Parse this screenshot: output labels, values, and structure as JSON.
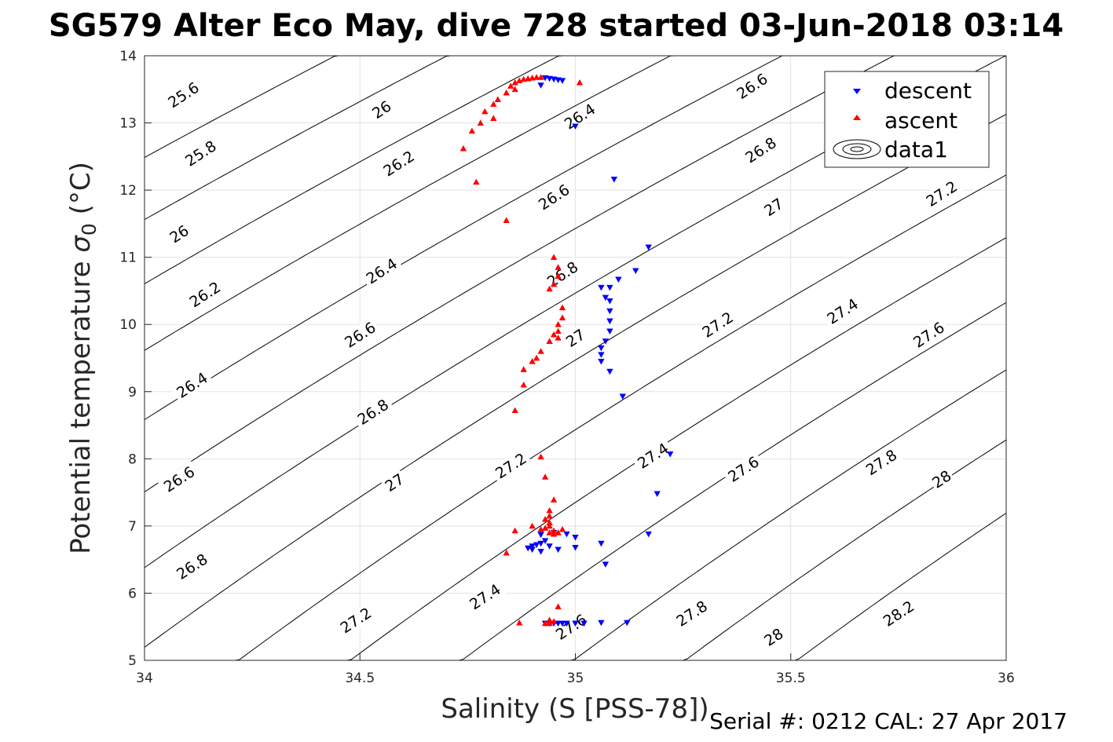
{
  "title": "SG579 Alter Eco May, dive 728 started 03-Jun-2018 03:14",
  "footer": "Serial #: 0212  CAL: 27 Apr 2017",
  "chart_data": {
    "type": "scatter",
    "title": "SG579 Alter Eco May, dive 728 started 03-Jun-2018 03:14",
    "xlabel": "Salinity (S [PSS-78])",
    "ylabel": "Potential temperature σ 0 (°C)",
    "ylabel_main": "Potential temperature ",
    "ylabel_sym": "σ",
    "ylabel_sub": "0",
    "ylabel_unit": " (°C)",
    "xlim": [
      34,
      36
    ],
    "ylim": [
      5,
      14
    ],
    "xticks": [
      "34",
      "34.5",
      "35",
      "35.5",
      "36"
    ],
    "yticks": [
      "5",
      "6",
      "7",
      "8",
      "9",
      "10",
      "11",
      "12",
      "13",
      "14"
    ],
    "grid": true,
    "legend_position": "top-right",
    "legend": [
      "descent",
      "ascent",
      "data1"
    ],
    "contours": {
      "name": "data1",
      "type": "sigma0 isopycnals",
      "levels": [
        25.6,
        25.8,
        26,
        26.2,
        26.4,
        26.6,
        26.8,
        27,
        27.2,
        27.4,
        27.6,
        27.8,
        28,
        28.2
      ],
      "labels": [
        {
          "text": "25.6",
          "x": 34.09,
          "y": 13.42
        },
        {
          "text": "25.8",
          "x": 34.13,
          "y": 12.55
        },
        {
          "text": "26",
          "x": 34.08,
          "y": 11.35
        },
        {
          "text": "26.2",
          "x": 34.14,
          "y": 10.45
        },
        {
          "text": "26.4",
          "x": 34.11,
          "y": 9.1
        },
        {
          "text": "26.6",
          "x": 34.08,
          "y": 7.7
        },
        {
          "text": "26.8",
          "x": 34.11,
          "y": 6.4
        },
        {
          "text": "26",
          "x": 34.55,
          "y": 13.2
        },
        {
          "text": "26.2",
          "x": 34.59,
          "y": 12.4
        },
        {
          "text": "26.4",
          "x": 34.55,
          "y": 10.8
        },
        {
          "text": "26.6",
          "x": 34.5,
          "y": 9.85
        },
        {
          "text": "26.8",
          "x": 34.53,
          "y": 8.7
        },
        {
          "text": "27",
          "x": 34.58,
          "y": 7.65
        },
        {
          "text": "27.2",
          "x": 34.49,
          "y": 5.6
        },
        {
          "text": "26.4",
          "x": 35.01,
          "y": 13.1
        },
        {
          "text": "26.6",
          "x": 34.95,
          "y": 11.9
        },
        {
          "text": "26.8",
          "x": 34.97,
          "y": 10.75
        },
        {
          "text": "27",
          "x": 35.0,
          "y": 9.8
        },
        {
          "text": "27.2",
          "x": 34.85,
          "y": 7.9
        },
        {
          "text": "27.4",
          "x": 34.79,
          "y": 5.95
        },
        {
          "text": "27.6",
          "x": 34.99,
          "y": 5.5
        },
        {
          "text": "26.6",
          "x": 35.41,
          "y": 13.55
        },
        {
          "text": "26.8",
          "x": 35.43,
          "y": 12.6
        },
        {
          "text": "27",
          "x": 35.46,
          "y": 11.75
        },
        {
          "text": "27.2",
          "x": 35.33,
          "y": 10.0
        },
        {
          "text": "27.4",
          "x": 35.18,
          "y": 8.05
        },
        {
          "text": "27.6",
          "x": 35.39,
          "y": 7.85
        },
        {
          "text": "27.8",
          "x": 35.27,
          "y": 5.7
        },
        {
          "text": "28",
          "x": 35.46,
          "y": 5.35
        },
        {
          "text": "27.2",
          "x": 35.85,
          "y": 11.95
        },
        {
          "text": "27.4",
          "x": 35.62,
          "y": 10.2
        },
        {
          "text": "27.6",
          "x": 35.82,
          "y": 9.85
        },
        {
          "text": "27.8",
          "x": 35.71,
          "y": 7.95
        },
        {
          "text": "28",
          "x": 35.85,
          "y": 7.7
        },
        {
          "text": "28.2",
          "x": 35.75,
          "y": 5.7
        }
      ]
    },
    "series": [
      {
        "name": "descent",
        "marker": "triangle-down",
        "color": "#0000ff",
        "points": [
          [
            34.93,
            13.67
          ],
          [
            34.94,
            13.66
          ],
          [
            34.95,
            13.65
          ],
          [
            34.96,
            13.64
          ],
          [
            34.97,
            13.63
          ],
          [
            34.92,
            13.56
          ],
          [
            35.0,
            12.95
          ],
          [
            35.09,
            12.16
          ],
          [
            35.17,
            11.15
          ],
          [
            35.14,
            10.8
          ],
          [
            35.1,
            10.67
          ],
          [
            35.06,
            10.55
          ],
          [
            35.08,
            10.55
          ],
          [
            35.07,
            10.4
          ],
          [
            35.08,
            10.35
          ],
          [
            35.08,
            10.2
          ],
          [
            35.08,
            10.05
          ],
          [
            35.08,
            9.9
          ],
          [
            35.07,
            9.75
          ],
          [
            35.06,
            9.65
          ],
          [
            35.06,
            9.55
          ],
          [
            35.06,
            9.45
          ],
          [
            35.08,
            9.3
          ],
          [
            35.11,
            8.93
          ],
          [
            35.22,
            8.07
          ],
          [
            35.19,
            7.48
          ],
          [
            35.17,
            6.88
          ],
          [
            35.06,
            6.74
          ],
          [
            35.07,
            6.43
          ],
          [
            34.92,
            6.87
          ],
          [
            34.95,
            6.9
          ],
          [
            34.98,
            6.88
          ],
          [
            35.0,
            6.83
          ],
          [
            34.93,
            6.78
          ],
          [
            34.92,
            6.74
          ],
          [
            34.91,
            6.72
          ],
          [
            34.9,
            6.7
          ],
          [
            34.89,
            6.67
          ],
          [
            34.9,
            6.65
          ],
          [
            34.92,
            6.62
          ],
          [
            34.94,
            6.7
          ],
          [
            34.96,
            6.65
          ],
          [
            35.0,
            6.68
          ],
          [
            34.93,
            5.55
          ],
          [
            34.94,
            5.55
          ],
          [
            34.95,
            5.55
          ],
          [
            34.96,
            5.55
          ],
          [
            34.97,
            5.55
          ],
          [
            34.98,
            5.55
          ],
          [
            35.0,
            5.55
          ],
          [
            35.02,
            5.55
          ],
          [
            35.06,
            5.56
          ],
          [
            35.12,
            5.56
          ]
        ]
      },
      {
        "name": "ascent",
        "marker": "triangle-up",
        "color": "#ff0000",
        "points": [
          [
            34.92,
            13.68
          ],
          [
            34.91,
            13.68
          ],
          [
            34.9,
            13.67
          ],
          [
            34.89,
            13.66
          ],
          [
            34.88,
            13.65
          ],
          [
            34.87,
            13.63
          ],
          [
            34.86,
            13.6
          ],
          [
            34.85,
            13.55
          ],
          [
            34.86,
            13.5
          ],
          [
            34.84,
            13.45
          ],
          [
            34.82,
            13.35
          ],
          [
            34.81,
            13.28
          ],
          [
            34.79,
            13.17
          ],
          [
            34.81,
            13.07
          ],
          [
            34.78,
            13.0
          ],
          [
            34.76,
            12.88
          ],
          [
            34.74,
            12.62
          ],
          [
            34.77,
            12.12
          ],
          [
            35.01,
            13.6
          ],
          [
            34.84,
            11.55
          ],
          [
            34.95,
            11.0
          ],
          [
            34.96,
            10.85
          ],
          [
            34.96,
            10.72
          ],
          [
            34.95,
            10.6
          ],
          [
            34.94,
            10.53
          ],
          [
            34.97,
            10.25
          ],
          [
            34.97,
            10.1
          ],
          [
            34.96,
            10.0
          ],
          [
            34.96,
            9.9
          ],
          [
            34.95,
            9.85
          ],
          [
            34.96,
            9.8
          ],
          [
            34.94,
            9.75
          ],
          [
            34.92,
            9.6
          ],
          [
            34.91,
            9.5
          ],
          [
            34.9,
            9.45
          ],
          [
            34.88,
            9.33
          ],
          [
            34.88,
            9.1
          ],
          [
            34.86,
            8.72
          ],
          [
            34.92,
            8.03
          ],
          [
            34.93,
            7.73
          ],
          [
            34.95,
            7.39
          ],
          [
            34.94,
            7.23
          ],
          [
            34.94,
            7.15
          ],
          [
            34.93,
            7.1
          ],
          [
            34.94,
            7.05
          ],
          [
            34.94,
            7.0
          ],
          [
            34.93,
            6.97
          ],
          [
            34.92,
            6.95
          ],
          [
            34.95,
            6.93
          ],
          [
            34.94,
            6.9
          ],
          [
            34.95,
            6.88
          ],
          [
            34.96,
            6.9
          ],
          [
            34.97,
            6.95
          ],
          [
            34.9,
            7.0
          ],
          [
            34.86,
            6.93
          ],
          [
            34.84,
            6.6
          ],
          [
            34.96,
            5.8
          ],
          [
            34.94,
            5.6
          ],
          [
            34.95,
            5.58
          ],
          [
            34.94,
            5.55
          ],
          [
            34.93,
            5.55
          ],
          [
            34.87,
            5.56
          ]
        ]
      }
    ]
  }
}
